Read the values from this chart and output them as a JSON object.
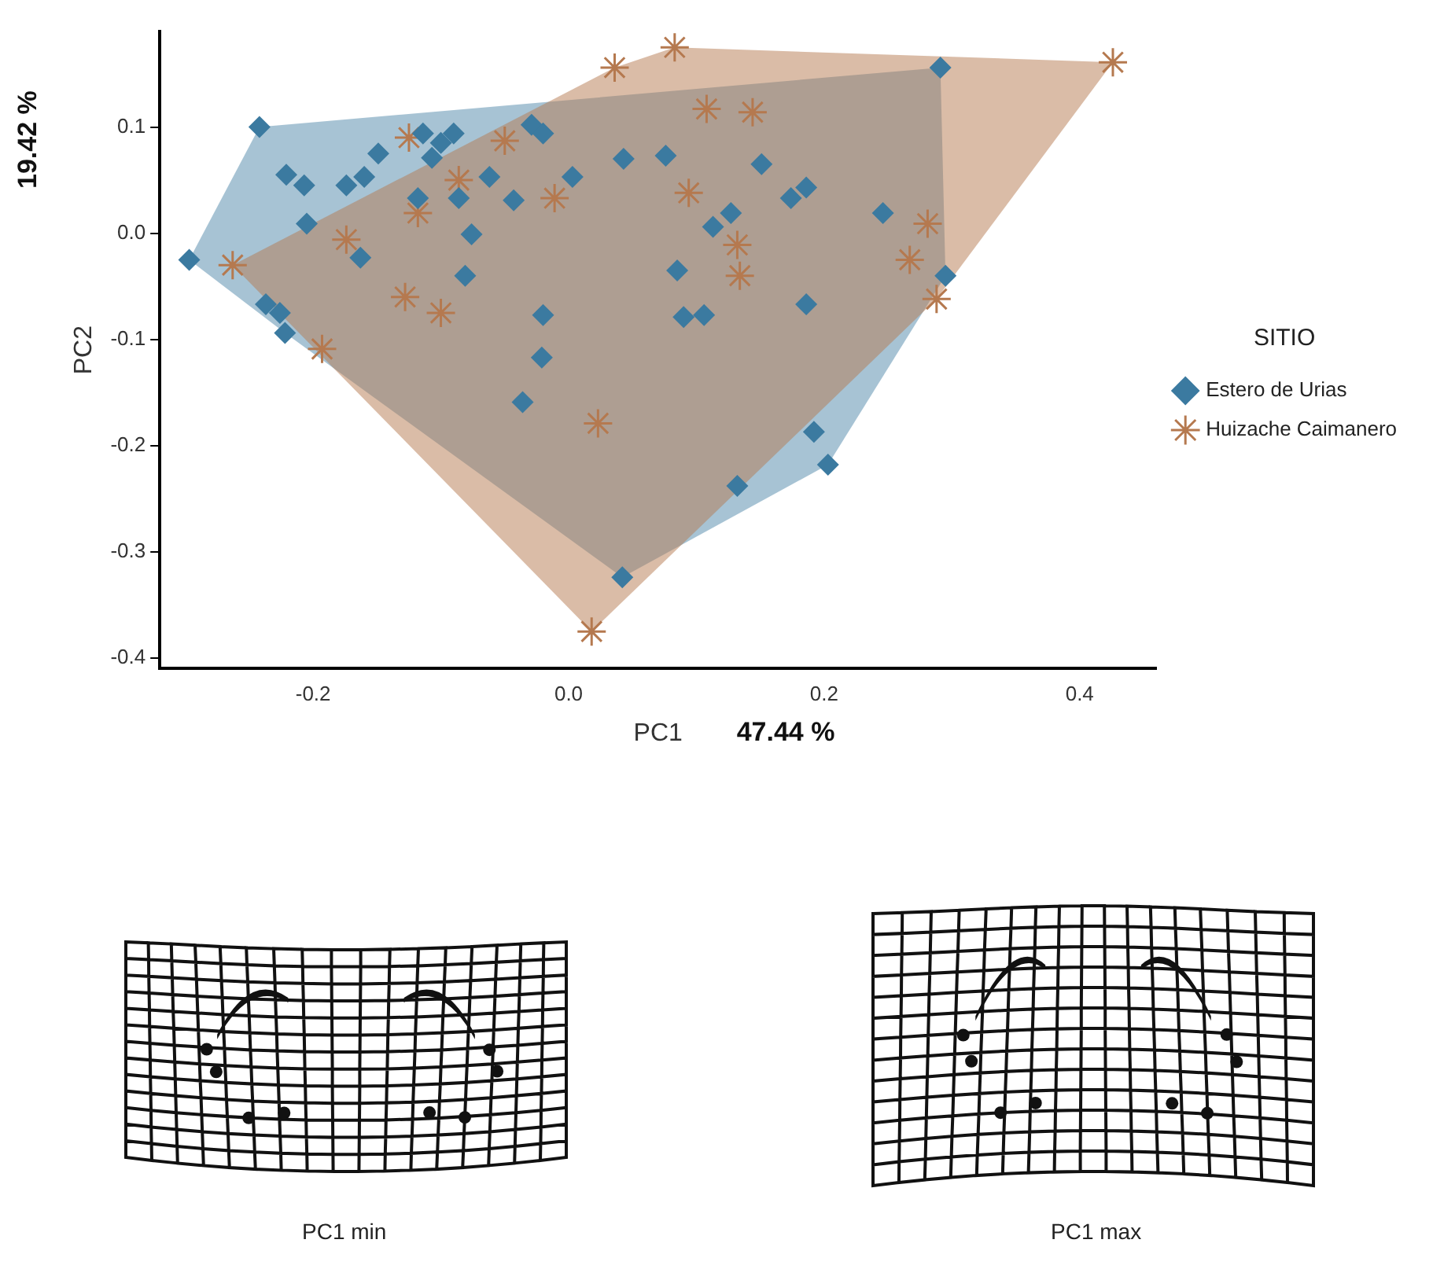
{
  "chart_data": {
    "type": "scatter",
    "xlabel": "PC1",
    "ylabel": "PC2",
    "legend_title": "SITIO",
    "legend": "right",
    "grid": false,
    "xlim": [
      -0.32,
      0.46
    ],
    "ylim": [
      -0.41,
      0.19
    ],
    "xticks": [
      -0.2,
      {
        "value": 0,
        "label": "0.0"
      },
      0.2,
      0.4
    ],
    "yticks": [
      -0.4,
      -0.3,
      -0.2,
      -0.1,
      {
        "value": 0,
        "label": "0.0"
      },
      0.1
    ],
    "annotations": [
      "47.44 %",
      "19.42 %",
      "PC1 min",
      "PC1 max"
    ],
    "series": [
      {
        "name": "Estero de Urias",
        "color": "#3b7aa0",
        "marker": "diamond",
        "x": [
          -0.297,
          -0.242,
          -0.221,
          -0.207,
          -0.174,
          -0.16,
          -0.149,
          -0.205,
          -0.114,
          -0.1,
          -0.09,
          -0.107,
          -0.118,
          -0.086,
          -0.062,
          -0.076,
          -0.043,
          -0.029,
          -0.02,
          0.003,
          -0.163,
          -0.081,
          -0.237,
          -0.226,
          -0.222,
          -0.02,
          -0.021,
          -0.036,
          0.192,
          0.203,
          0.132,
          0.042,
          0.043,
          0.291,
          0.076,
          0.151,
          0.174,
          0.186,
          0.113,
          0.127,
          0.246,
          0.085,
          0.09,
          0.106,
          0.186,
          0.295
        ],
        "values": [
          -0.025,
          0.1,
          0.055,
          0.045,
          0.045,
          0.053,
          0.075,
          0.009,
          0.094,
          0.085,
          0.094,
          0.071,
          0.033,
          0.033,
          0.053,
          -0.001,
          0.031,
          0.102,
          0.094,
          0.053,
          -0.023,
          -0.04,
          -0.067,
          -0.075,
          -0.094,
          -0.077,
          -0.117,
          -0.159,
          -0.187,
          -0.218,
          -0.238,
          -0.324,
          0.07,
          0.156,
          0.073,
          0.065,
          0.033,
          0.043,
          0.006,
          0.019,
          0.019,
          -0.035,
          -0.079,
          -0.077,
          -0.067,
          -0.04
        ]
      },
      {
        "type": "area",
        "color": "#3b7aa0",
        "x": [
          -0.297,
          -0.242,
          0.291,
          0.295,
          0.203,
          0.042,
          -0.222
        ],
        "values": [
          -0.025,
          0.1,
          0.156,
          -0.04,
          -0.218,
          -0.324,
          -0.094
        ]
      },
      {
        "type": "area",
        "color": "#b5794f",
        "x": [
          -0.263,
          0.036,
          0.083,
          0.426,
          0.288,
          0.018
        ],
        "values": [
          -0.03,
          0.156,
          0.175,
          0.161,
          -0.062,
          -0.375
        ]
      },
      {
        "name": "Huizache Caimanero",
        "color": "#b5794f",
        "marker": "cross",
        "x": [
          0.036,
          -0.263,
          -0.125,
          -0.05,
          -0.086,
          -0.118,
          -0.011,
          -0.174,
          -0.128,
          -0.1,
          -0.193,
          0.023,
          0.018,
          0.083,
          0.426,
          0.108,
          0.144,
          0.094,
          0.132,
          0.134,
          0.281,
          0.267,
          0.288
        ],
        "values": [
          0.156,
          -0.03,
          0.09,
          0.087,
          0.05,
          0.019,
          0.033,
          -0.006,
          -0.06,
          -0.075,
          -0.109,
          -0.179,
          -0.375,
          0.175,
          0.161,
          0.117,
          0.114,
          0.038,
          -0.011,
          -0.04,
          0.009,
          -0.025,
          -0.062
        ]
      }
    ]
  }
}
